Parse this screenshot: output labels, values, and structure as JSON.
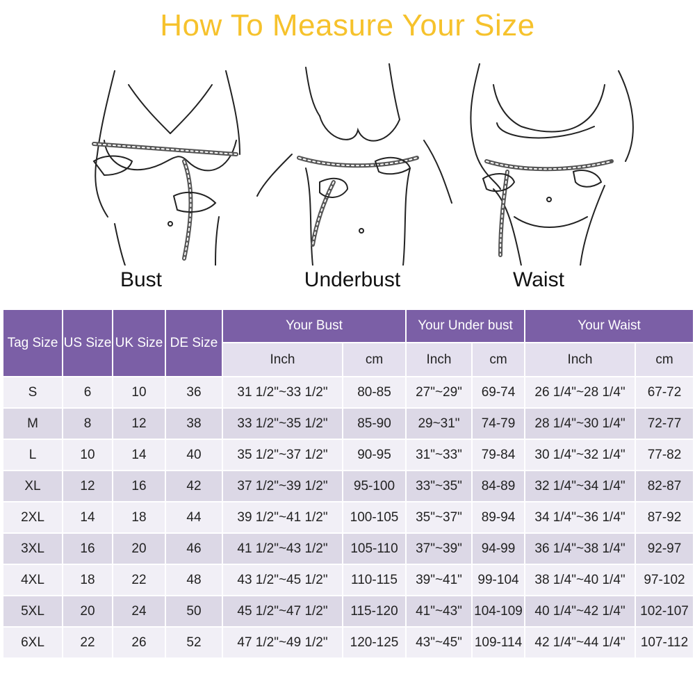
{
  "title": "How To Measure Your Size",
  "figures": {
    "bust_label": "Bust",
    "underbust_label": "Underbust",
    "waist_label": "Waist"
  },
  "table": {
    "headers": {
      "tag_size": "Tag Size",
      "us_size": "US Size",
      "uk_size": "UK Size",
      "de_size": "DE Size",
      "your_bust": "Your Bust",
      "your_under_bust": "Your Under bust",
      "your_waist": "Your Waist",
      "inch": "Inch",
      "cm": "cm"
    },
    "rows": [
      [
        "S",
        "6",
        "10",
        "36",
        "31 1/2\"~33 1/2\"",
        "80-85",
        "27\"~29\"",
        "69-74",
        "26 1/4\"~28 1/4\"",
        "67-72"
      ],
      [
        "M",
        "8",
        "12",
        "38",
        "33 1/2\"~35 1/2\"",
        "85-90",
        "29~31\"",
        "74-79",
        "28 1/4\"~30 1/4\"",
        "72-77"
      ],
      [
        "L",
        "10",
        "14",
        "40",
        "35 1/2\"~37 1/2\"",
        "90-95",
        "31\"~33\"",
        "79-84",
        "30 1/4\"~32 1/4\"",
        "77-82"
      ],
      [
        "XL",
        "12",
        "16",
        "42",
        "37 1/2\"~39 1/2\"",
        "95-100",
        "33\"~35\"",
        "84-89",
        "32 1/4\"~34 1/4\"",
        "82-87"
      ],
      [
        "2XL",
        "14",
        "18",
        "44",
        "39 1/2\"~41 1/2\"",
        "100-105",
        "35\"~37\"",
        "89-94",
        "34 1/4\"~36 1/4\"",
        "87-92"
      ],
      [
        "3XL",
        "16",
        "20",
        "46",
        "41 1/2\"~43 1/2\"",
        "105-110",
        "37\"~39\"",
        "94-99",
        "36 1/4\"~38 1/4\"",
        "92-97"
      ],
      [
        "4XL",
        "18",
        "22",
        "48",
        "43 1/2\"~45 1/2\"",
        "110-115",
        "39\"~41\"",
        "99-104",
        "38 1/4\"~40 1/4\"",
        "97-102"
      ],
      [
        "5XL",
        "20",
        "24",
        "50",
        "45 1/2\"~47 1/2\"",
        "115-120",
        "41\"~43\"",
        "104-109",
        "40 1/4\"~42 1/4\"",
        "102-107"
      ],
      [
        "6XL",
        "22",
        "26",
        "52",
        "47 1/2\"~49 1/2\"",
        "120-125",
        "43\"~45\"",
        "109-114",
        "42 1/4\"~44 1/4\"",
        "107-112"
      ]
    ]
  },
  "colors": {
    "title": "#f6c22c",
    "header_purple": "#7b5fa6",
    "subheader": "#e4e0ee",
    "row_light": "#f1eff6",
    "row_dark": "#dcd8e6"
  }
}
